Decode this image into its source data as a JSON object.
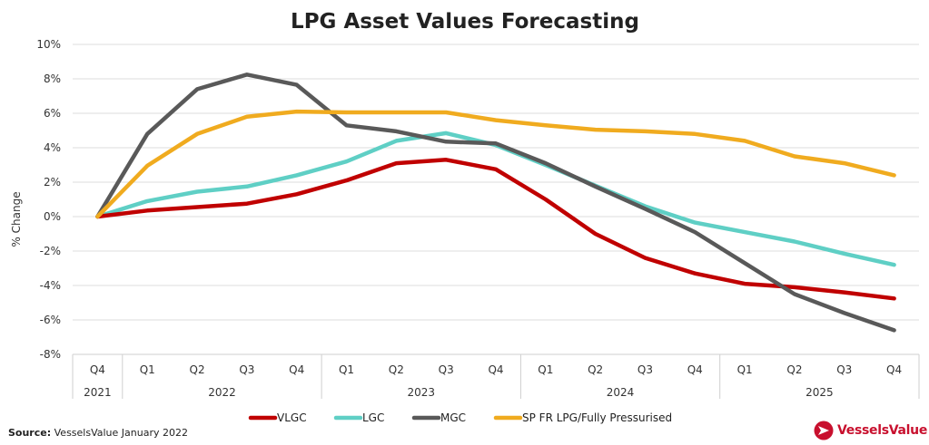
{
  "chart_data": {
    "type": "line",
    "title": "LPG Asset Values Forecasting",
    "ylabel": "% Change",
    "xlabel": "",
    "ylim": [
      -8,
      10
    ],
    "yticks": [
      "10%",
      "8%",
      "6%",
      "4%",
      "2%",
      "0%",
      "-2%",
      "-4%",
      "-6%",
      "-8%"
    ],
    "ytick_values": [
      10,
      8,
      6,
      4,
      2,
      0,
      -2,
      -4,
      -6,
      -8
    ],
    "grid": true,
    "categories": [
      "Q4",
      "Q1",
      "Q2",
      "Q3",
      "Q4",
      "Q1",
      "Q2",
      "Q3",
      "Q4",
      "Q1",
      "Q2",
      "Q3",
      "Q4",
      "Q1",
      "Q2",
      "Q3",
      "Q4"
    ],
    "years": [
      {
        "label": "2021",
        "start": 0,
        "end": 0
      },
      {
        "label": "2022",
        "start": 1,
        "end": 4
      },
      {
        "label": "2023",
        "start": 5,
        "end": 8
      },
      {
        "label": "2024",
        "start": 9,
        "end": 12
      },
      {
        "label": "2025",
        "start": 13,
        "end": 16
      }
    ],
    "series": [
      {
        "name": "VLGC",
        "color": "#c00000",
        "values": [
          0,
          0.35,
          0.55,
          0.75,
          1.3,
          2.1,
          3.1,
          3.3,
          2.75,
          1.0,
          -1.0,
          -2.4,
          -3.3,
          -3.9,
          -4.1,
          -4.4,
          -4.75
        ]
      },
      {
        "name": "LGC",
        "color": "#5fcfc5",
        "values": [
          0,
          0.9,
          1.45,
          1.75,
          2.4,
          3.2,
          4.4,
          4.85,
          4.15,
          3.0,
          1.8,
          0.6,
          -0.35,
          -0.9,
          -1.45,
          -2.15,
          -2.8
        ]
      },
      {
        "name": "MGC",
        "color": "#595959",
        "values": [
          0,
          4.8,
          7.4,
          8.25,
          7.65,
          5.3,
          4.95,
          4.35,
          4.25,
          3.1,
          1.75,
          0.45,
          -0.9,
          -2.7,
          -4.5,
          -5.6,
          -6.6
        ]
      },
      {
        "name": "SP FR LPG/Fully Pressurised",
        "color": "#f0ab1f",
        "values": [
          0,
          2.95,
          4.8,
          5.8,
          6.1,
          6.05,
          6.05,
          6.05,
          5.6,
          5.3,
          5.05,
          4.95,
          4.8,
          4.4,
          3.5,
          3.1,
          2.4
        ]
      }
    ],
    "legend": "bottom"
  },
  "source": {
    "label": "Source:",
    "text": "VesselsValue January 2022"
  },
  "brand": {
    "name": "VesselsValue",
    "icon": "vesselsvalue-logo-icon"
  }
}
